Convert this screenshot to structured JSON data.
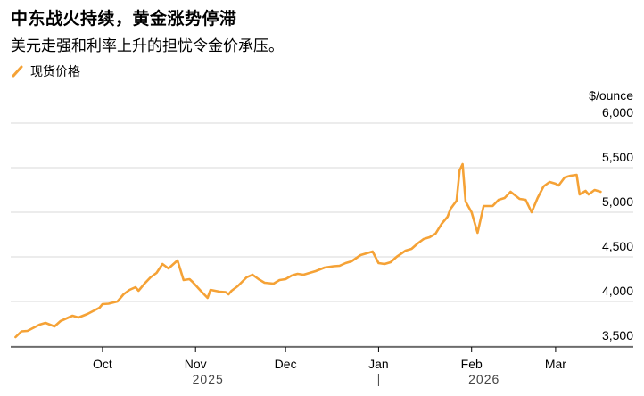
{
  "title": "中东战火持续，黄金涨势停滞",
  "subtitle": "美元走强和利率上升的担忧令金价承压。",
  "colors": {
    "series": "#f5a236",
    "grid": "#d9d9d9",
    "axis": "#000000"
  },
  "chart_data": {
    "type": "line",
    "title": "中东战火持续，黄金涨势停滞",
    "subtitle": "美元走强和利率上升的担忧令金价承压。",
    "unit_label": "$/ounce",
    "ylim": [
      3500,
      6000
    ],
    "y_ticks": [
      {
        "value": 3500,
        "label": "3,500"
      },
      {
        "value": 4000,
        "label": "4,000"
      },
      {
        "value": 4500,
        "label": "4,500"
      },
      {
        "value": 5000,
        "label": "5,000"
      },
      {
        "value": 5500,
        "label": "5,500"
      },
      {
        "value": 6000,
        "label": "6,000"
      }
    ],
    "x_range": [
      "2025-09-01",
      "2026-03-15"
    ],
    "x_ticks": [
      {
        "date": "2025-10-01",
        "label": "Oct"
      },
      {
        "date": "2025-11-01",
        "label": "Nov"
      },
      {
        "date": "2025-12-01",
        "label": "Dec"
      },
      {
        "date": "2026-01-01",
        "label": "Jan"
      },
      {
        "date": "2026-02-01",
        "label": "Feb"
      },
      {
        "date": "2026-03-01",
        "label": "Mar"
      }
    ],
    "year_labels": [
      {
        "date": "2025-11-01",
        "label": "2025"
      },
      {
        "date": "2026-02-01",
        "label": "2026"
      }
    ],
    "year_divider": "2026-01-01",
    "grid": true,
    "legend_position": "top-left",
    "series": [
      {
        "name": "现货价格",
        "color": "#f5a236",
        "points": [
          [
            "2025-09-02",
            3480
          ],
          [
            "2025-09-04",
            3545
          ],
          [
            "2025-09-06",
            3550
          ],
          [
            "2025-09-10",
            3620
          ],
          [
            "2025-09-12",
            3640
          ],
          [
            "2025-09-15",
            3600
          ],
          [
            "2025-09-17",
            3660
          ],
          [
            "2025-09-21",
            3720
          ],
          [
            "2025-09-23",
            3700
          ],
          [
            "2025-09-26",
            3740
          ],
          [
            "2025-09-30",
            3810
          ],
          [
            "2025-10-01",
            3850
          ],
          [
            "2025-10-03",
            3855
          ],
          [
            "2025-10-06",
            3880
          ],
          [
            "2025-10-08",
            3960
          ],
          [
            "2025-10-10",
            4010
          ],
          [
            "2025-10-12",
            4040
          ],
          [
            "2025-10-13",
            4000
          ],
          [
            "2025-10-15",
            4080
          ],
          [
            "2025-10-17",
            4150
          ],
          [
            "2025-10-19",
            4200
          ],
          [
            "2025-10-21",
            4300
          ],
          [
            "2025-10-23",
            4250
          ],
          [
            "2025-10-26",
            4340
          ],
          [
            "2025-10-28",
            4120
          ],
          [
            "2025-10-30",
            4130
          ],
          [
            "2025-10-31",
            4100
          ],
          [
            "2025-11-03",
            3990
          ],
          [
            "2025-11-05",
            3920
          ],
          [
            "2025-11-06",
            4010
          ],
          [
            "2025-11-09",
            3990
          ],
          [
            "2025-11-11",
            3985
          ],
          [
            "2025-11-12",
            3960
          ],
          [
            "2025-11-13",
            4000
          ],
          [
            "2025-11-15",
            4050
          ],
          [
            "2025-11-18",
            4150
          ],
          [
            "2025-11-20",
            4180
          ],
          [
            "2025-11-22",
            4130
          ],
          [
            "2025-11-24",
            4090
          ],
          [
            "2025-11-27",
            4080
          ],
          [
            "2025-11-29",
            4120
          ],
          [
            "2025-12-01",
            4130
          ],
          [
            "2025-12-03",
            4170
          ],
          [
            "2025-12-05",
            4190
          ],
          [
            "2025-12-07",
            4180
          ],
          [
            "2025-12-09",
            4200
          ],
          [
            "2025-12-11",
            4220
          ],
          [
            "2025-12-14",
            4260
          ],
          [
            "2025-12-17",
            4275
          ],
          [
            "2025-12-19",
            4280
          ],
          [
            "2025-12-21",
            4310
          ],
          [
            "2025-12-23",
            4330
          ],
          [
            "2025-12-26",
            4400
          ],
          [
            "2025-12-28",
            4420
          ],
          [
            "2025-12-30",
            4440
          ],
          [
            "2026-01-01",
            4310
          ],
          [
            "2026-01-03",
            4300
          ],
          [
            "2026-01-05",
            4320
          ],
          [
            "2026-01-07",
            4380
          ],
          [
            "2026-01-10",
            4450
          ],
          [
            "2026-01-12",
            4470
          ],
          [
            "2026-01-14",
            4530
          ],
          [
            "2026-01-16",
            4580
          ],
          [
            "2026-01-18",
            4600
          ],
          [
            "2026-01-20",
            4640
          ],
          [
            "2026-01-22",
            4750
          ],
          [
            "2026-01-24",
            4830
          ],
          [
            "2026-01-25",
            4920
          ],
          [
            "2026-01-27",
            5010
          ],
          [
            "2026-01-28",
            5350
          ],
          [
            "2026-01-29",
            5420
          ],
          [
            "2026-01-30",
            5000
          ],
          [
            "2026-02-01",
            4880
          ],
          [
            "2026-02-03",
            4650
          ],
          [
            "2026-02-05",
            4950
          ],
          [
            "2026-02-08",
            4950
          ],
          [
            "2026-02-10",
            5020
          ],
          [
            "2026-02-12",
            5040
          ],
          [
            "2026-02-14",
            5110
          ],
          [
            "2026-02-17",
            5030
          ],
          [
            "2026-02-19",
            5020
          ],
          [
            "2026-02-21",
            4880
          ],
          [
            "2026-02-23",
            5040
          ],
          [
            "2026-02-25",
            5170
          ],
          [
            "2026-02-27",
            5220
          ],
          [
            "2026-03-01",
            5200
          ],
          [
            "2026-03-02",
            5180
          ],
          [
            "2026-03-04",
            5270
          ],
          [
            "2026-03-06",
            5290
          ],
          [
            "2026-03-08",
            5300
          ],
          [
            "2026-03-09",
            5080
          ],
          [
            "2026-03-11",
            5120
          ],
          [
            "2026-03-12",
            5080
          ],
          [
            "2026-03-14",
            5130
          ],
          [
            "2026-03-16",
            5110
          ]
        ]
      }
    ]
  }
}
